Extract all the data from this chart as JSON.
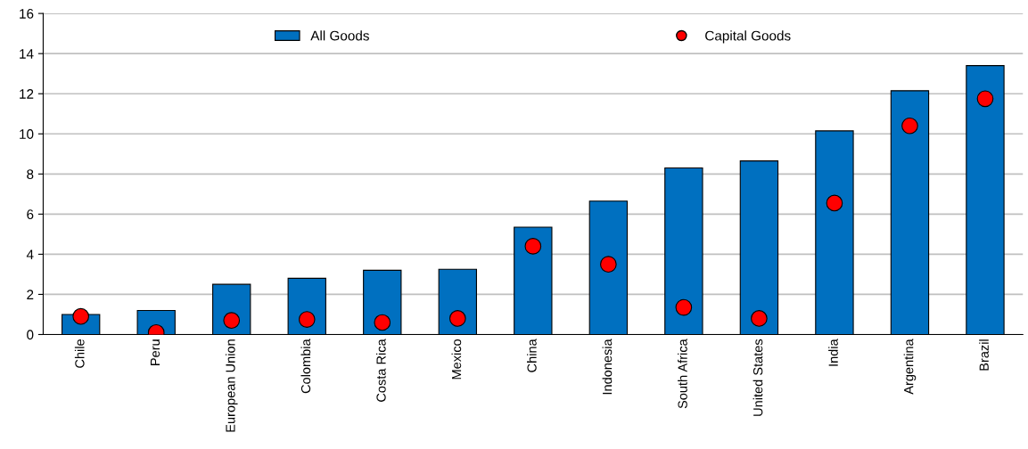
{
  "chart_data": {
    "type": "bar",
    "categories": [
      "Chile",
      "Peru",
      "European Union",
      "Colombia",
      "Costa Rica",
      "Mexico",
      "China",
      "Indonesia",
      "South Africa",
      "United States",
      "India",
      "Argentina",
      "Brazil"
    ],
    "series": [
      {
        "name": "All Goods",
        "color": "#0070c0",
        "values": [
          1.0,
          1.2,
          2.5,
          2.8,
          3.2,
          3.25,
          5.35,
          6.65,
          8.3,
          8.65,
          10.15,
          12.15,
          13.4
        ]
      },
      {
        "name": "Capital Goods",
        "type": "scatter",
        "color": "#ff0000",
        "values": [
          0.9,
          0.1,
          0.7,
          0.75,
          0.6,
          0.8,
          4.4,
          3.5,
          1.35,
          0.8,
          6.55,
          10.4,
          11.75
        ]
      }
    ],
    "ylim": [
      0,
      16
    ],
    "yticks": [
      0,
      2,
      4,
      6,
      8,
      10,
      12,
      14,
      16
    ],
    "grid": "y",
    "legend": "top",
    "marker": "circle"
  }
}
